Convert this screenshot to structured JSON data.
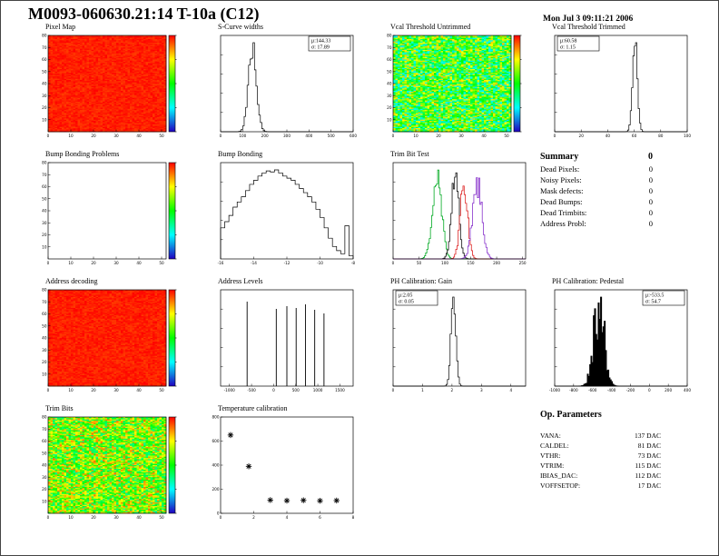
{
  "page": {
    "title": "M0093-060630.21:14 T-10a (C12)",
    "date": "Mon Jul  3 09:11:21 2006"
  },
  "summary": {
    "heading": "Summary",
    "total": "0",
    "rows": [
      {
        "label": "Dead Pixels:",
        "value": "0"
      },
      {
        "label": "Noisy Pixels:",
        "value": "0"
      },
      {
        "label": "Mask defects:",
        "value": "0"
      },
      {
        "label": "Dead Bumps:",
        "value": "0"
      },
      {
        "label": "Dead Trimbits:",
        "value": "0"
      },
      {
        "label": "Address Probl:",
        "value": "0"
      }
    ]
  },
  "op_parameters": {
    "heading": "Op. Parameters",
    "rows": [
      {
        "label": "VANA:",
        "value": "137 DAC"
      },
      {
        "label": "CALDEL:",
        "value": "81 DAC"
      },
      {
        "label": "VTHR:",
        "value": "73 DAC"
      },
      {
        "label": "VTRIM:",
        "value": "115 DAC"
      },
      {
        "label": "IBIAS_DAC:",
        "value": "112 DAC"
      },
      {
        "label": "VOFFSETOP:",
        "value": "17 DAC"
      }
    ]
  },
  "chart_data": [
    {
      "id": "pixel-map",
      "title": "Pixel Map",
      "type": "heatmap",
      "fill": "noise",
      "mean": 0.97,
      "spread": 0.03,
      "seed": 3,
      "nx": 52,
      "ny": 80,
      "xlim": [
        0,
        52
      ],
      "ylim": [
        0,
        80
      ],
      "xticks": [
        0,
        10,
        20,
        30,
        40,
        50
      ],
      "yticks": [
        10,
        20,
        30,
        40,
        50,
        60,
        70,
        80
      ],
      "colorbar": true,
      "palette": "rainbow",
      "note": "uniform maximum response (all red)"
    },
    {
      "id": "s-curve-widths",
      "title": "S-Curve widths",
      "type": "histogram",
      "dist": "gauss",
      "mu": 144.33,
      "sigma": 17.89,
      "xlim": [
        0,
        600
      ],
      "bins": 90,
      "jitter": 0.15,
      "seed": 5,
      "xticks": [
        0,
        100,
        200,
        300,
        400,
        500,
        600
      ],
      "stats": {
        "mu": "144.33",
        "sigma": "17.89",
        "pos": "right"
      }
    },
    {
      "id": "vcal-threshold-untrimmed",
      "title": "Vcal Threshold Untrimmed",
      "type": "heatmap",
      "fill": "noise",
      "mean": 0.52,
      "spread": 0.3,
      "seed": 7,
      "nx": 52,
      "ny": 80,
      "xlim": [
        0,
        52
      ],
      "ylim": [
        0,
        80
      ],
      "xticks": [
        0,
        10,
        20,
        30,
        40,
        50
      ],
      "yticks": [
        10,
        20,
        30,
        40,
        50,
        60,
        70,
        80
      ],
      "colorbar": true,
      "palette": "rainbow"
    },
    {
      "id": "vcal-threshold-trimmed",
      "title": "Vcal Threshold Trimmed",
      "type": "histogram",
      "dist": "gauss",
      "mu": 60.58,
      "sigma": 1.15,
      "xlim": [
        0,
        100
      ],
      "bins": 100,
      "jitter": 0.1,
      "seed": 6,
      "xticks": [
        0,
        20,
        40,
        60,
        80,
        100
      ],
      "stats": {
        "mu": "60.58",
        "sigma": "1.15",
        "pos": "left"
      }
    },
    {
      "id": "bump-bonding-problems",
      "title": "Bump Bonding Problems",
      "type": "heatmap",
      "fill": "empty",
      "nx": 52,
      "ny": 80,
      "xlim": [
        0,
        52
      ],
      "ylim": [
        0,
        80
      ],
      "xticks": [
        0,
        10,
        20,
        30,
        40,
        50
      ],
      "yticks": [
        10,
        20,
        30,
        40,
        50,
        60,
        70,
        80
      ],
      "colorbar": true,
      "palette": "rainbow",
      "note": "no entries - empty map"
    },
    {
      "id": "bump-bonding",
      "title": "Bump Bonding",
      "type": "histogram",
      "values": [
        0.3,
        0.36,
        0.42,
        0.5,
        0.55,
        0.6,
        0.66,
        0.72,
        0.76,
        0.8,
        0.83,
        0.85,
        0.84,
        0.86,
        0.83,
        0.8,
        0.78,
        0.76,
        0.72,
        0.68,
        0.64,
        0.6,
        0.55,
        0.48,
        0.4,
        0.3,
        0.2,
        0.12,
        0.08,
        0.05,
        0.32,
        0.03
      ],
      "xlim": [
        -16,
        -8
      ],
      "xticks": [
        -16,
        -14,
        -12,
        -10,
        -8
      ]
    },
    {
      "id": "trim-bit-test",
      "title": "Trim Bit Test",
      "type": "multi_histogram",
      "xlim": [
        0,
        256
      ],
      "bins": 110,
      "xticks": [
        0,
        50,
        100,
        150,
        200,
        250
      ],
      "series": [
        {
          "name": "trim-bit-green",
          "color": "#00aa22",
          "mu": 85,
          "sigma": 9,
          "h": 0.88,
          "seed": 21
        },
        {
          "name": "trim-bit-black",
          "color": "#111111",
          "mu": 120,
          "sigma": 7,
          "h": 0.95,
          "seed": 22
        },
        {
          "name": "trim-bit-red",
          "color": "#dd2222",
          "mu": 137,
          "sigma": 7,
          "h": 0.9,
          "seed": 23
        },
        {
          "name": "trim-bit-violet",
          "color": "#8833cc",
          "mu": 163,
          "sigma": 9,
          "h": 0.82,
          "seed": 24
        }
      ]
    },
    {
      "id": "address-decoding",
      "title": "Address decoding",
      "type": "heatmap",
      "fill": "noise",
      "mean": 0.97,
      "spread": 0.03,
      "seed": 4,
      "nx": 52,
      "ny": 80,
      "xlim": [
        0,
        52
      ],
      "ylim": [
        0,
        80
      ],
      "xticks": [
        0,
        10,
        20,
        30,
        40,
        50
      ],
      "yticks": [
        10,
        20,
        30,
        40,
        50,
        60,
        70,
        80
      ],
      "colorbar": true,
      "palette": "rainbow",
      "note": "uniform - all addresses decoded (all red)"
    },
    {
      "id": "address-levels",
      "title": "Address Levels",
      "type": "spikes",
      "xlim": [
        -1200,
        1800
      ],
      "xticks": [
        -1000,
        -500,
        0,
        500,
        1000,
        1500
      ],
      "positions": [
        -600,
        60,
        300,
        510,
        720,
        930,
        1140
      ],
      "heights": [
        0.93,
        0.85,
        0.88,
        0.86,
        0.9,
        0.84,
        0.8
      ]
    },
    {
      "id": "ph-calibration-gain",
      "title": "PH Calibration: Gain",
      "type": "histogram",
      "dist": "gauss",
      "mu": 2.05,
      "sigma": 0.05,
      "xlim": [
        0,
        4.5
      ],
      "bins": 100,
      "jitter": 0.1,
      "seed": 8,
      "xticks": [
        0,
        1,
        2,
        3,
        4
      ],
      "stats": {
        "mu": "2.05",
        "sigma": "0.05",
        "pos": "left"
      }
    },
    {
      "id": "ph-calibration-pedestal",
      "title": "PH Calibration: Pedestal",
      "type": "histogram",
      "dist": "gauss",
      "mu": -533.5,
      "sigma": 54.7,
      "xlim": [
        -1000,
        400
      ],
      "bins": 110,
      "jitter": 0.5,
      "seed": 9,
      "fillstyle": "solid",
      "xticks": [
        -1000,
        -800,
        -600,
        -400,
        -200,
        0,
        200,
        400
      ],
      "stats": {
        "mu": "-533.5",
        "sigma": "54.7",
        "pos": "right"
      }
    },
    {
      "id": "trim-bits",
      "title": "Trim Bits",
      "type": "heatmap",
      "fill": "noise",
      "mean": 0.62,
      "spread": 0.27,
      "seed": 13,
      "nx": 52,
      "ny": 80,
      "xlim": [
        0,
        52
      ],
      "ylim": [
        0,
        80
      ],
      "xticks": [
        0,
        10,
        20,
        30,
        40,
        50
      ],
      "yticks": [
        10,
        20,
        30,
        40,
        50,
        60,
        70,
        80
      ],
      "colorbar": true,
      "palette": "rainbow"
    },
    {
      "id": "temperature-calibration",
      "title": "Temperature calibration",
      "type": "scatter",
      "marker": "asterisk",
      "xlim": [
        0,
        8
      ],
      "ylim": [
        0,
        800
      ],
      "xticks": [
        0,
        2,
        4,
        6,
        8
      ],
      "yticks": [
        0,
        200,
        400,
        600,
        800
      ],
      "points": [
        [
          0.6,
          650
        ],
        [
          1.7,
          390
        ],
        [
          3.0,
          110
        ],
        [
          4.0,
          105
        ],
        [
          5.0,
          108
        ],
        [
          6.0,
          104
        ],
        [
          7.0,
          106
        ]
      ]
    }
  ]
}
